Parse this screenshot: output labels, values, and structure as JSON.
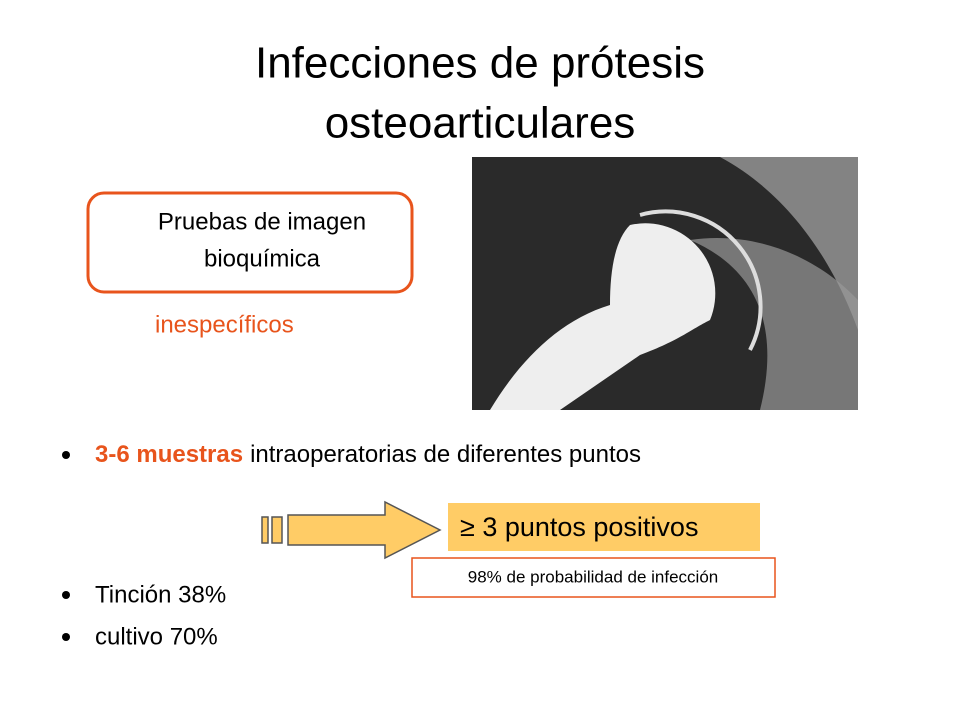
{
  "title": {
    "lines": [
      "Infecciones de prótesis",
      "osteoarticulares"
    ]
  },
  "imaging_box": {
    "lines": [
      "Pruebas de imagen",
      "bioquímica"
    ]
  },
  "imaging_note": "inespecíficos",
  "bullets": [
    {
      "emphasis": "3-6 muestras",
      "text": "intraoperatorias de diferentes puntos"
    },
    {
      "text": "Tinción 38%"
    },
    {
      "text": "cultivo 70%"
    }
  ],
  "criterion": "≥ 3 puntos positivos",
  "probability_note": "98% de probabilidad de infección"
}
